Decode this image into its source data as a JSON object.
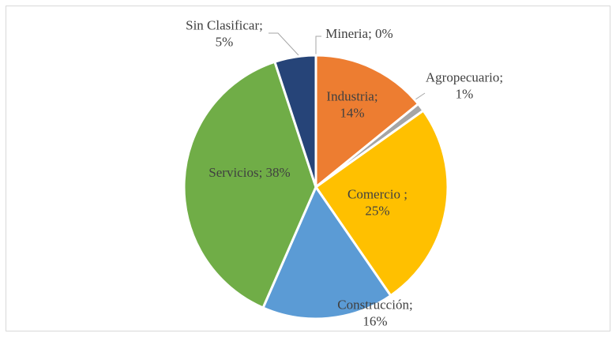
{
  "chart_data": {
    "type": "pie",
    "values": [
      0,
      14,
      1,
      25,
      16,
      38,
      5
    ],
    "value_labels": [
      [
        "Mineria; 0%"
      ],
      [
        "Industria;",
        "14%"
      ],
      [
        "Agropecuario;",
        "1%"
      ],
      [
        "Comercio ;",
        "25%"
      ],
      [
        "Construcción;",
        "16%"
      ],
      [
        "Servicios; 38%"
      ],
      [
        "Sin Clasificar;",
        "5%"
      ]
    ],
    "colors": [
      "#a5a5a5",
      "#ed7d31",
      "#a5a5a5",
      "#ffc000",
      "#5b9bd5",
      "#70ad47",
      "#264478"
    ]
  }
}
